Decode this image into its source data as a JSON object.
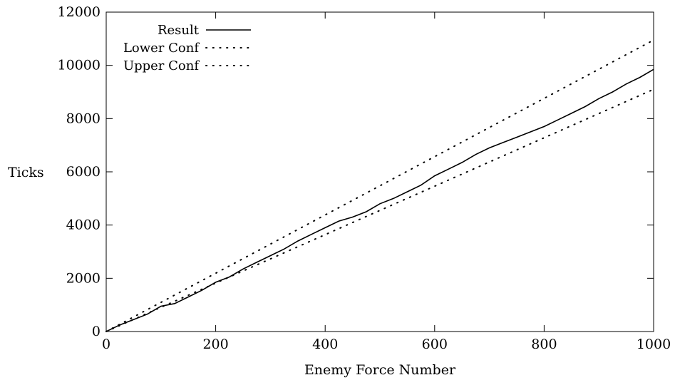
{
  "chart_data": {
    "type": "line",
    "title": "",
    "xlabel": "Enemy Force Number",
    "ylabel": "Ticks",
    "xlim": [
      0,
      1000
    ],
    "ylim": [
      0,
      12000
    ],
    "xticks": [
      0,
      200,
      400,
      600,
      800,
      1000
    ],
    "yticks": [
      0,
      2000,
      4000,
      6000,
      8000,
      10000,
      12000
    ],
    "grid": false,
    "legend_position": "top-left",
    "series": [
      {
        "name": "Result",
        "style": "solid",
        "color": "#000000",
        "x": [
          0,
          25,
          50,
          75,
          100,
          125,
          150,
          175,
          200,
          225,
          250,
          275,
          300,
          325,
          350,
          375,
          400,
          425,
          450,
          475,
          500,
          525,
          550,
          575,
          600,
          625,
          650,
          675,
          700,
          725,
          750,
          775,
          800,
          825,
          850,
          875,
          900,
          925,
          950,
          975,
          1000
        ],
        "y": [
          0,
          250,
          450,
          650,
          950,
          1050,
          1300,
          1550,
          1850,
          2050,
          2350,
          2600,
          2850,
          3100,
          3400,
          3650,
          3900,
          4150,
          4300,
          4500,
          4800,
          5000,
          5250,
          5500,
          5850,
          6100,
          6350,
          6650,
          6900,
          7100,
          7300,
          7500,
          7700,
          7950,
          8200,
          8450,
          8750,
          9000,
          9300,
          9550,
          9850
        ]
      },
      {
        "name": "Lower Conf",
        "style": "dotted",
        "color": "#000000",
        "x": [
          0,
          1000
        ],
        "y": [
          0,
          10950
        ]
      },
      {
        "name": "Upper Conf",
        "style": "dotted",
        "color": "#000000",
        "x": [
          0,
          1000
        ],
        "y": [
          0,
          9100
        ]
      }
    ]
  }
}
